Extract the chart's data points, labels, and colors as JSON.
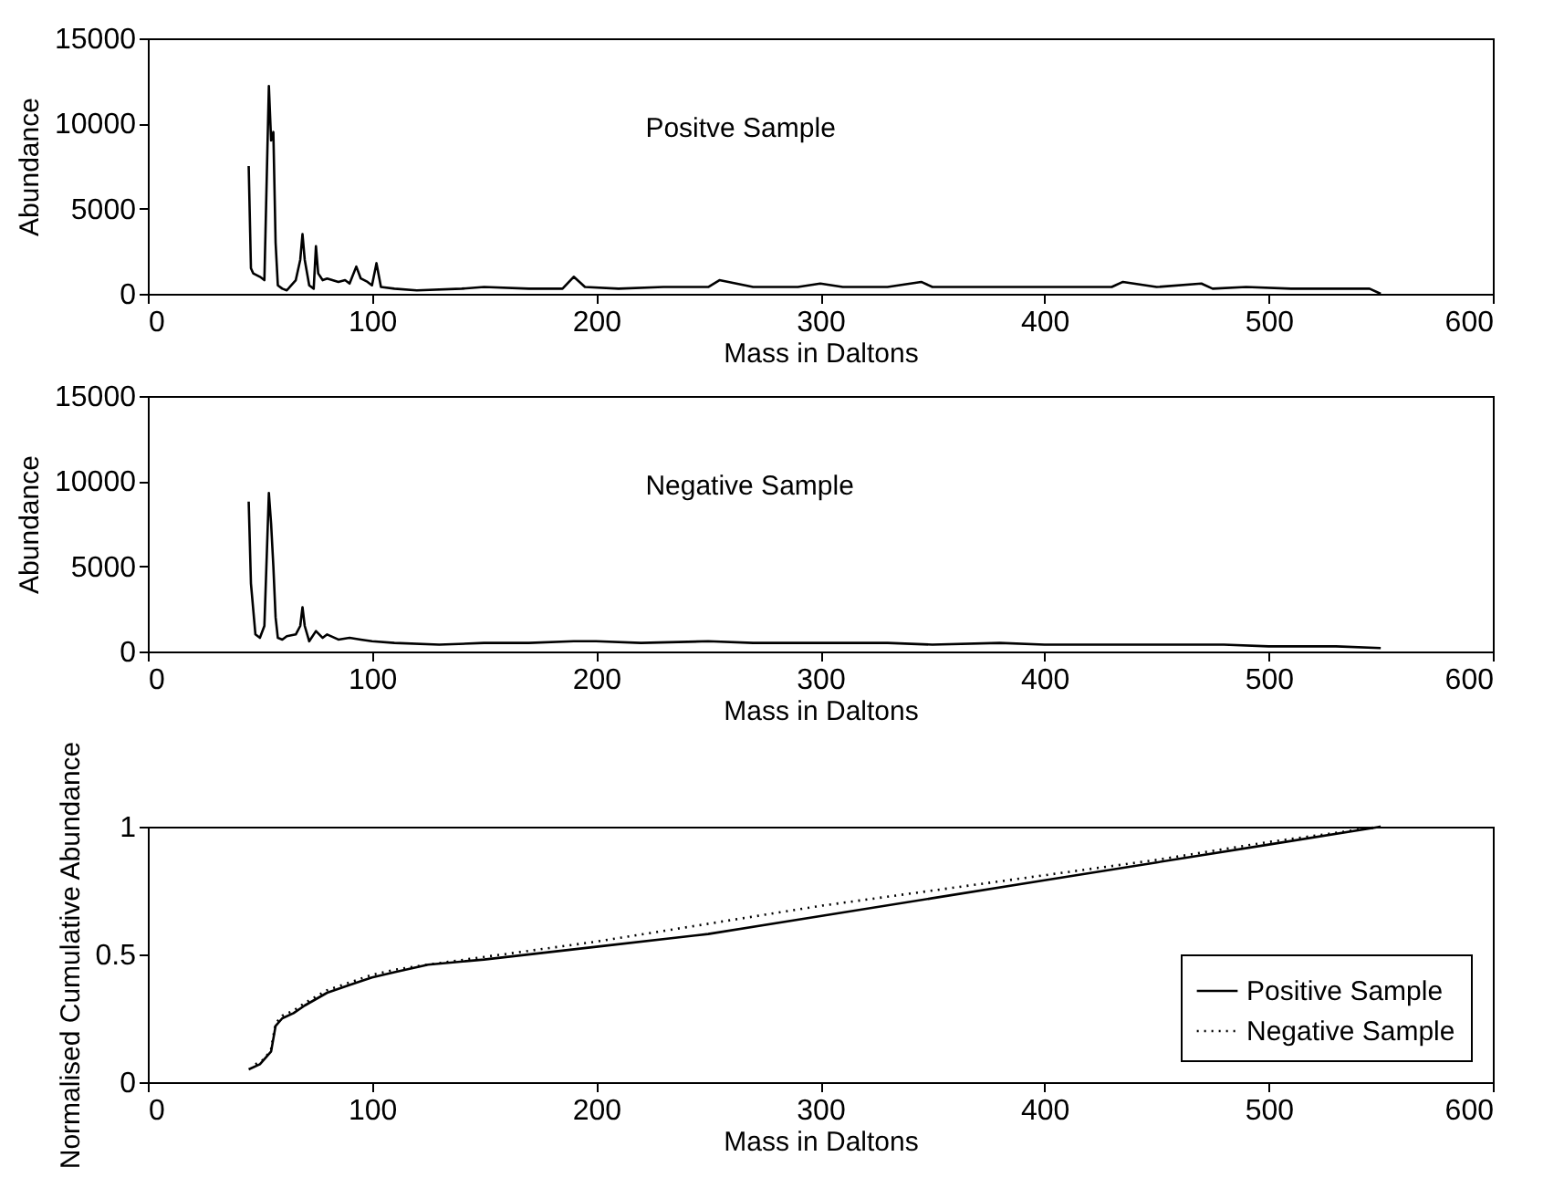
{
  "chart_data": [
    {
      "type": "line",
      "xlabel": "Mass in Daltons",
      "ylabel": "Abundance",
      "annotations": [
        "Positve Sample"
      ],
      "xlim": [
        0,
        600
      ],
      "xticks": [
        0,
        100,
        200,
        300,
        400,
        500,
        600
      ],
      "ylim": [
        0,
        15000
      ],
      "yticks": [
        0,
        5000,
        10000,
        15000
      ],
      "grid": false,
      "series": [
        {
          "color": "#000000",
          "line_style": "solid",
          "x": [
            45,
            46,
            47,
            50,
            52,
            54,
            55,
            56,
            57,
            58,
            60,
            62,
            64,
            66,
            68,
            69,
            70,
            72,
            74,
            75,
            76,
            78,
            80,
            85,
            88,
            90,
            93,
            95,
            98,
            100,
            102,
            104,
            110,
            120,
            140,
            150,
            170,
            185,
            190,
            195,
            210,
            230,
            250,
            255,
            270,
            290,
            300,
            310,
            330,
            345,
            350,
            370,
            390,
            410,
            430,
            435,
            450,
            470,
            475,
            490,
            510,
            530,
            545,
            550
          ],
          "values": [
            7500,
            1500,
            1200,
            1000,
            800,
            12200,
            9000,
            9500,
            3000,
            500,
            300,
            200,
            500,
            800,
            2000,
            3500,
            2000,
            500,
            300,
            2800,
            1200,
            800,
            900,
            700,
            800,
            600,
            1600,
            900,
            700,
            500,
            1800,
            400,
            300,
            200,
            300,
            400,
            300,
            300,
            1000,
            400,
            300,
            400,
            400,
            800,
            400,
            400,
            600,
            400,
            400,
            700,
            400,
            400,
            400,
            400,
            400,
            700,
            400,
            600,
            300,
            400,
            300,
            300,
            300,
            0
          ]
        }
      ]
    },
    {
      "type": "line",
      "xlabel": "Mass in Daltons",
      "ylabel": "Abundance",
      "annotations": [
        "Negative Sample"
      ],
      "xlim": [
        0,
        600
      ],
      "xticks": [
        0,
        100,
        200,
        300,
        400,
        500,
        600
      ],
      "ylim": [
        0,
        15000
      ],
      "yticks": [
        0,
        5000,
        10000,
        15000
      ],
      "grid": false,
      "series": [
        {
          "color": "#000000",
          "line_style": "solid",
          "x": [
            45,
            46,
            48,
            50,
            52,
            54,
            55,
            56,
            57,
            58,
            60,
            62,
            66,
            68,
            69,
            70,
            72,
            75,
            78,
            80,
            85,
            90,
            95,
            100,
            110,
            130,
            150,
            170,
            190,
            200,
            220,
            250,
            270,
            300,
            330,
            350,
            380,
            400,
            430,
            450,
            480,
            500,
            530,
            550
          ],
          "values": [
            8800,
            4000,
            1000,
            800,
            1500,
            9300,
            7500,
            5000,
            2000,
            800,
            700,
            900,
            1000,
            1500,
            2600,
            1500,
            600,
            1200,
            800,
            1000,
            700,
            800,
            700,
            600,
            500,
            400,
            500,
            500,
            600,
            600,
            500,
            600,
            500,
            500,
            500,
            400,
            500,
            400,
            400,
            400,
            400,
            300,
            300,
            200
          ]
        }
      ]
    },
    {
      "type": "line",
      "xlabel": "Mass in Daltons",
      "ylabel": "Normalised Cumulative Abundance",
      "xlim": [
        0,
        600
      ],
      "xticks": [
        0,
        100,
        200,
        300,
        400,
        500,
        600
      ],
      "ylim": [
        0,
        1
      ],
      "yticks": [
        0,
        0.5,
        1
      ],
      "grid": false,
      "legend": "bottom right",
      "series": [
        {
          "name": "Positive Sample",
          "color": "#000000",
          "line_style": "solid",
          "x": [
            45,
            50,
            55,
            57,
            60,
            65,
            70,
            80,
            90,
            100,
            110,
            125,
            150,
            200,
            250,
            300,
            350,
            400,
            450,
            500,
            550
          ],
          "values": [
            0.05,
            0.07,
            0.12,
            0.22,
            0.25,
            0.27,
            0.3,
            0.35,
            0.38,
            0.41,
            0.43,
            0.46,
            0.48,
            0.53,
            0.58,
            0.65,
            0.72,
            0.79,
            0.86,
            0.93,
            1.0
          ]
        },
        {
          "name": "Negative Sample",
          "color": "#000000",
          "line_style": "dotted",
          "x": [
            48,
            52,
            55,
            57,
            60,
            65,
            70,
            80,
            90,
            100,
            110,
            125,
            150,
            200,
            250,
            300,
            350,
            400,
            450,
            500,
            550
          ],
          "values": [
            0.07,
            0.09,
            0.13,
            0.23,
            0.26,
            0.28,
            0.31,
            0.36,
            0.39,
            0.42,
            0.44,
            0.46,
            0.49,
            0.55,
            0.62,
            0.69,
            0.75,
            0.81,
            0.87,
            0.94,
            1.0
          ]
        }
      ]
    }
  ]
}
